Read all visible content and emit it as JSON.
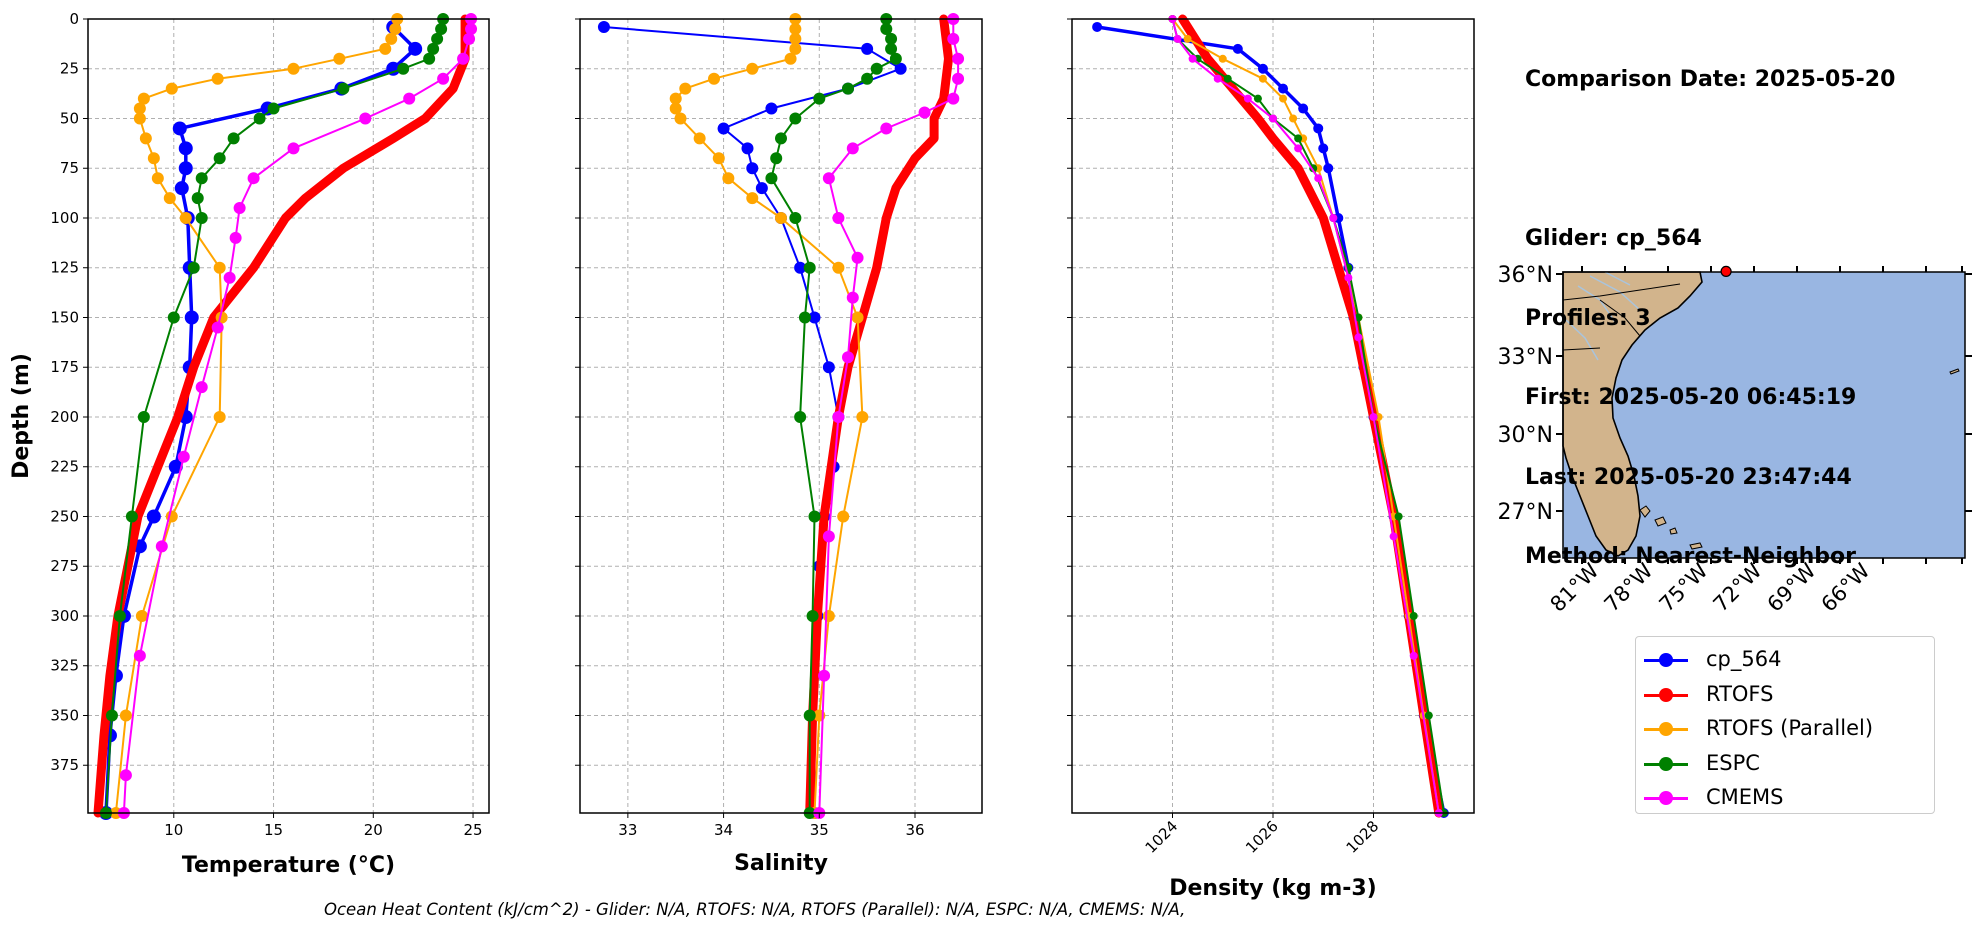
{
  "info": {
    "lines": [
      "Comparison Date: 2025-05-20",
      "",
      "Glider: cp_564",
      "Profiles: 3",
      "First: 2025-05-20 06:45:19",
      "Last: 2025-05-20 23:47:44",
      "Method: Nearest-Neighbor"
    ]
  },
  "footnote": "Ocean Heat Content (kJ/cm^2) - Glider: N/A,  RTOFS: N/A,  RTOFS (Parallel): N/A,  ESPC: N/A,  CMEMS: N/A,",
  "legend": [
    {
      "label": "cp_564",
      "color": "#0000ff"
    },
    {
      "label": "RTOFS",
      "color": "#ff0000"
    },
    {
      "label": "RTOFS (Parallel)",
      "color": "#ffa500"
    },
    {
      "label": "ESPC",
      "color": "#008000"
    },
    {
      "label": "CMEMS",
      "color": "#ff00ff"
    }
  ],
  "map": {
    "lat_ticks": [
      "36°N",
      "33°N",
      "30°N",
      "27°N"
    ],
    "lon_ticks": [
      "81°W",
      "78°W",
      "75°W",
      "72°W",
      "69°W",
      "66°W"
    ],
    "land_color": "#d2b48c",
    "ocean_color": "#99b6e2",
    "glider_position": {
      "lon": -74.9,
      "lat": 35.8
    }
  },
  "chart_data": [
    {
      "type": "line",
      "xlabel": "Temperature (°C)",
      "ylabel": "Depth (m)",
      "xlim": [
        5.7,
        25.8
      ],
      "ylim": [
        399,
        0
      ],
      "xticks": [
        10,
        15,
        20,
        25
      ],
      "yticks": [
        0,
        25,
        50,
        75,
        100,
        125,
        150,
        175,
        200,
        225,
        250,
        275,
        300,
        325,
        350,
        375
      ],
      "grid": true,
      "series": [
        {
          "name": "cp_564",
          "color": "#0000ff",
          "depth": [
            4,
            15,
            25,
            35,
            45,
            55,
            65,
            75,
            85,
            100,
            125,
            150,
            175,
            200,
            225,
            250,
            265,
            300,
            330,
            360,
            399
          ],
          "values": [
            21.0,
            22.1,
            21.0,
            18.4,
            14.7,
            10.3,
            10.6,
            10.6,
            10.4,
            10.7,
            10.8,
            10.9,
            10.8,
            10.6,
            10.1,
            9.0,
            8.3,
            7.5,
            7.1,
            6.8,
            6.6
          ]
        },
        {
          "name": "RTOFS",
          "color": "#ff0000",
          "depth": [
            0,
            20,
            35,
            50,
            60,
            75,
            90,
            100,
            125,
            150,
            175,
            200,
            225,
            250,
            275,
            300,
            330,
            360,
            399
          ],
          "values": [
            24.6,
            24.6,
            24.0,
            22.6,
            21.0,
            18.5,
            16.6,
            15.6,
            14.0,
            12.0,
            11.0,
            10.2,
            9.2,
            8.2,
            7.7,
            7.2,
            6.8,
            6.5,
            6.2
          ]
        },
        {
          "name": "RTOFS (Parallel)",
          "color": "#ffa500",
          "depth": [
            0,
            5,
            10,
            15,
            20,
            25,
            30,
            35,
            40,
            45,
            50,
            60,
            70,
            80,
            90,
            100,
            125,
            150,
            200,
            250,
            300,
            350,
            399
          ],
          "values": [
            21.2,
            21.1,
            20.9,
            20.6,
            18.3,
            16.0,
            12.2,
            9.9,
            8.5,
            8.3,
            8.3,
            8.6,
            9.0,
            9.2,
            9.8,
            10.6,
            12.3,
            12.4,
            12.3,
            9.9,
            8.4,
            7.6,
            7.1
          ]
        },
        {
          "name": "ESPC",
          "color": "#008000",
          "depth": [
            0,
            5,
            10,
            15,
            20,
            25,
            35,
            45,
            50,
            60,
            70,
            80,
            90,
            100,
            125,
            150,
            200,
            250,
            300,
            350,
            399
          ],
          "values": [
            23.5,
            23.4,
            23.2,
            23.0,
            22.8,
            21.5,
            18.5,
            15.0,
            14.3,
            13.0,
            12.3,
            11.4,
            11.2,
            11.4,
            11.0,
            10.0,
            8.5,
            7.9,
            7.3,
            6.9,
            6.6
          ]
        },
        {
          "name": "CMEMS",
          "color": "#ff00ff",
          "depth": [
            0,
            5,
            10,
            20,
            30,
            40,
            50,
            65,
            80,
            95,
            110,
            130,
            155,
            185,
            220,
            265,
            320,
            380,
            399
          ],
          "values": [
            24.9,
            24.9,
            24.8,
            24.5,
            23.5,
            21.8,
            19.6,
            16.0,
            14.0,
            13.3,
            13.1,
            12.8,
            12.2,
            11.4,
            10.5,
            9.4,
            8.3,
            7.6,
            7.5
          ]
        }
      ]
    },
    {
      "type": "line",
      "xlabel": "Salinity",
      "ylabel": "",
      "xlim": [
        32.5,
        36.7
      ],
      "ylim": [
        399,
        0
      ],
      "xticks": [
        33,
        34,
        35,
        36
      ],
      "yticks": [
        0,
        25,
        50,
        75,
        100,
        125,
        150,
        175,
        200,
        225,
        250,
        275,
        300,
        325,
        350,
        375
      ],
      "grid": true,
      "series": [
        {
          "name": "cp_564",
          "color": "#0000ff",
          "depth": [
            4,
            15,
            25,
            35,
            45,
            55,
            65,
            75,
            85,
            100,
            125,
            150,
            175,
            200,
            225,
            250,
            275,
            300,
            350,
            399
          ],
          "values": [
            32.75,
            35.5,
            35.85,
            35.3,
            34.5,
            34.0,
            34.25,
            34.3,
            34.4,
            34.6,
            34.8,
            34.95,
            35.1,
            35.2,
            35.15,
            35.05,
            35.0,
            34.98,
            34.95,
            34.95
          ]
        },
        {
          "name": "RTOFS",
          "color": "#ff0000",
          "depth": [
            0,
            20,
            40,
            50,
            60,
            70,
            85,
            100,
            125,
            150,
            175,
            200,
            250,
            300,
            350,
            399
          ],
          "values": [
            36.3,
            36.35,
            36.3,
            36.2,
            36.2,
            36.0,
            35.8,
            35.7,
            35.6,
            35.45,
            35.3,
            35.2,
            35.05,
            34.98,
            34.93,
            34.9
          ]
        },
        {
          "name": "RTOFS (Parallel)",
          "color": "#ffa500",
          "depth": [
            0,
            5,
            10,
            15,
            20,
            25,
            30,
            35,
            40,
            45,
            50,
            60,
            70,
            80,
            90,
            100,
            125,
            150,
            200,
            250,
            300,
            350,
            399
          ],
          "values": [
            34.75,
            34.75,
            34.75,
            34.75,
            34.7,
            34.3,
            33.9,
            33.6,
            33.5,
            33.5,
            33.55,
            33.75,
            33.95,
            34.05,
            34.3,
            34.6,
            35.2,
            35.4,
            35.45,
            35.25,
            35.1,
            35.0,
            34.95
          ]
        },
        {
          "name": "ESPC",
          "color": "#008000",
          "depth": [
            0,
            5,
            10,
            15,
            20,
            25,
            30,
            35,
            40,
            50,
            60,
            70,
            80,
            100,
            125,
            150,
            200,
            250,
            300,
            350,
            399
          ],
          "values": [
            35.7,
            35.7,
            35.75,
            35.75,
            35.8,
            35.6,
            35.5,
            35.3,
            35.0,
            34.75,
            34.6,
            34.55,
            34.5,
            34.75,
            34.9,
            34.85,
            34.8,
            34.95,
            34.93,
            34.9,
            34.9
          ]
        },
        {
          "name": "CMEMS",
          "color": "#ff00ff",
          "depth": [
            0,
            10,
            20,
            30,
            40,
            47,
            55,
            65,
            80,
            100,
            120,
            140,
            170,
            200,
            260,
            330,
            399
          ],
          "values": [
            36.4,
            36.4,
            36.45,
            36.45,
            36.4,
            36.1,
            35.7,
            35.35,
            35.1,
            35.2,
            35.4,
            35.35,
            35.3,
            35.2,
            35.1,
            35.05,
            35.0
          ]
        }
      ]
    },
    {
      "type": "line",
      "xlabel": "Density (kg m-3)",
      "ylabel": "",
      "xlim": [
        1022.0,
        1030.0
      ],
      "ylim": [
        399,
        0
      ],
      "xticks": [
        1024,
        1026,
        1028
      ],
      "yticks": [
        0,
        25,
        50,
        75,
        100,
        125,
        150,
        175,
        200,
        225,
        250,
        275,
        300,
        325,
        350,
        375
      ],
      "grid": true,
      "series": [
        {
          "name": "cp_564",
          "color": "#0000ff",
          "depth": [
            4,
            15,
            25,
            35,
            45,
            55,
            65,
            75,
            100,
            125,
            150,
            175,
            200,
            250,
            300,
            350,
            399
          ],
          "values": [
            1022.5,
            1025.3,
            1025.8,
            1026.2,
            1026.6,
            1026.9,
            1027.0,
            1027.1,
            1027.3,
            1027.5,
            1027.6,
            1027.8,
            1028.0,
            1028.4,
            1028.7,
            1029.0,
            1029.4
          ]
        },
        {
          "name": "RTOFS",
          "color": "#ff0000",
          "depth": [
            0,
            20,
            35,
            50,
            60,
            75,
            100,
            125,
            150,
            200,
            250,
            300,
            350,
            399
          ],
          "values": [
            1024.2,
            1024.7,
            1025.2,
            1025.7,
            1026.0,
            1026.5,
            1027.0,
            1027.3,
            1027.6,
            1028.0,
            1028.4,
            1028.7,
            1029.0,
            1029.3
          ]
        },
        {
          "name": "RTOFS (Parallel)",
          "color": "#ffa500",
          "depth": [
            0,
            10,
            20,
            30,
            40,
            50,
            60,
            75,
            100,
            150,
            200,
            250,
            300,
            350,
            399
          ],
          "values": [
            1024.0,
            1024.3,
            1025.0,
            1025.8,
            1026.2,
            1026.4,
            1026.6,
            1026.9,
            1027.2,
            1027.7,
            1028.1,
            1028.4,
            1028.7,
            1029.0,
            1029.3
          ]
        },
        {
          "name": "ESPC",
          "color": "#008000",
          "depth": [
            0,
            10,
            20,
            30,
            40,
            50,
            60,
            75,
            100,
            125,
            150,
            200,
            250,
            300,
            350,
            399
          ],
          "values": [
            1024.0,
            1024.1,
            1024.5,
            1025.1,
            1025.7,
            1026.0,
            1026.5,
            1026.8,
            1027.2,
            1027.5,
            1027.7,
            1028.0,
            1028.5,
            1028.8,
            1029.1,
            1029.4
          ]
        },
        {
          "name": "CMEMS",
          "color": "#ff00ff",
          "depth": [
            0,
            10,
            20,
            30,
            40,
            50,
            65,
            80,
            100,
            130,
            160,
            200,
            260,
            320,
            399
          ],
          "values": [
            1024.0,
            1024.1,
            1024.4,
            1024.9,
            1025.5,
            1026.0,
            1026.5,
            1026.9,
            1027.2,
            1027.5,
            1027.7,
            1028.0,
            1028.4,
            1028.8,
            1029.3
          ]
        }
      ]
    }
  ]
}
